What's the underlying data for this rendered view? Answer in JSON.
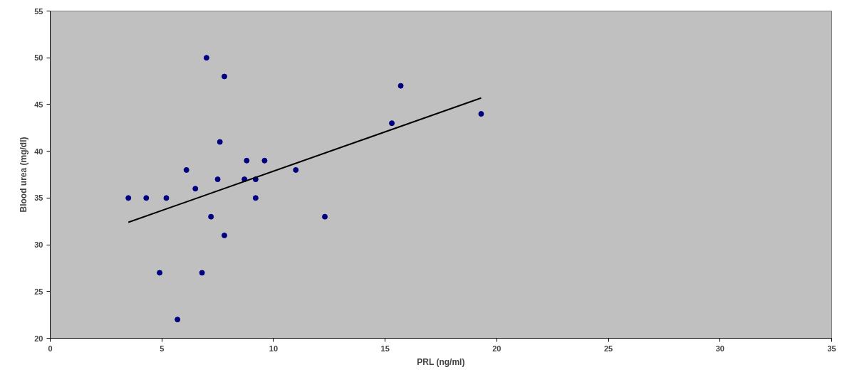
{
  "chart_data": {
    "type": "scatter",
    "xlabel": "PRL (ng/ml)",
    "ylabel": "Blood urea (mg/dl)",
    "xlim": [
      0,
      35
    ],
    "xticks": [
      0,
      5,
      10,
      15,
      20,
      25,
      30,
      35
    ],
    "ylim": [
      20,
      55
    ],
    "yticks": [
      20,
      25,
      30,
      35,
      40,
      45,
      50,
      55
    ],
    "grid": false,
    "series": [
      {
        "marker": "circle",
        "color": "#000080",
        "x": [
          3.5,
          4.3,
          5.2,
          4.9,
          5.7,
          6.1,
          6.5,
          7.0,
          6.8,
          7.2,
          7.5,
          7.6,
          7.8,
          7.8,
          8.7,
          8.8,
          9.2,
          9.2,
          9.6,
          11.0,
          12.3,
          15.3,
          15.7,
          19.3
        ],
        "values": [
          35,
          35,
          35,
          27,
          22,
          38,
          36,
          50,
          27,
          33,
          37,
          41,
          48,
          31,
          37,
          39,
          37,
          35,
          39,
          38,
          33,
          43,
          47,
          44
        ]
      },
      {
        "type": "line",
        "marker": "none",
        "color": "#000000",
        "x": [
          3.5,
          19.3
        ],
        "values": [
          32.4,
          45.7
        ]
      }
    ]
  }
}
